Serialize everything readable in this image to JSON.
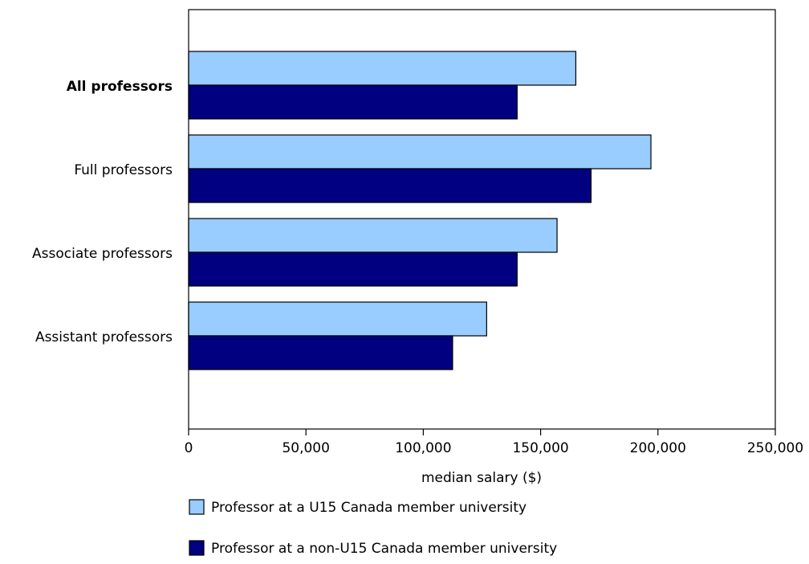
{
  "chart_data": {
    "type": "bar",
    "orientation": "horizontal",
    "categories": [
      "All professors",
      "Full professors",
      "Associate professors",
      "Assistant professors"
    ],
    "emphasized_category": "All professors",
    "series": [
      {
        "name": "Professor at a U15 Canada member university",
        "values": [
          165000,
          197000,
          157000,
          127000
        ],
        "color": "#99ccff"
      },
      {
        "name": "Professor at a non-U15 Canada member university",
        "values": [
          140000,
          171500,
          140000,
          112500
        ],
        "color": "#000080"
      }
    ],
    "xlabel": "median salary ($)",
    "xlim": [
      0,
      250000
    ],
    "xticks": [
      0,
      50000,
      100000,
      150000,
      200000,
      250000
    ],
    "xtick_labels": [
      "0",
      "50,000",
      "100,000",
      "150,000",
      "200,000",
      "250,000"
    ],
    "grid": false,
    "legend_position": "bottom-left"
  }
}
